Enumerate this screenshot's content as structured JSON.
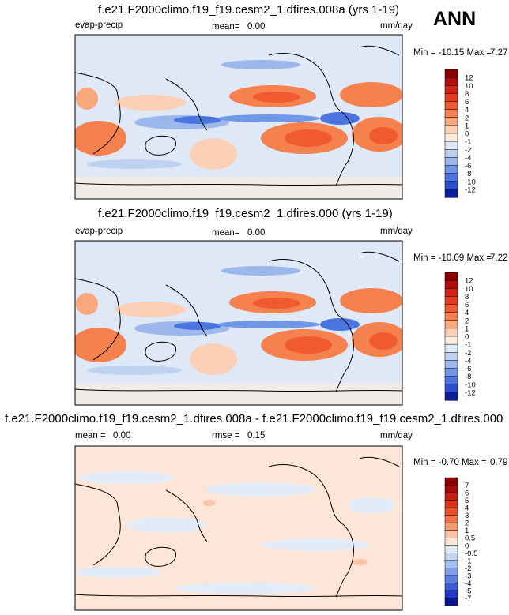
{
  "season": "ANN",
  "chart_data": [
    {
      "type": "heatmap",
      "title": "f.e21.F2000climo.f19_f19.cesm2_1.dfires.008a (yrs 1-19)",
      "variable": "evap-precip",
      "mean_label": "mean=",
      "mean_value": "0.00",
      "units": "mm/day",
      "min_label": "Min = -10.15 Max =",
      "max_value": "7.27",
      "levels": [
        "12",
        "10",
        "8",
        "6",
        "4",
        "2",
        "1",
        "0",
        "-1",
        "-2",
        "-4",
        "-6",
        "-8",
        "-10",
        "-12"
      ],
      "colors": [
        "#8b0000",
        "#b00d0d",
        "#d02216",
        "#e23b1f",
        "#ef5a30",
        "#f5814f",
        "#f9a77c",
        "#fbd0b6",
        "#fdecde",
        "#dfe8f7",
        "#bed1f1",
        "#9bb7ec",
        "#7096e6",
        "#4a74df",
        "#2b4fd0",
        "#0c1e9a"
      ]
    },
    {
      "type": "heatmap",
      "title": "f.e21.F2000climo.f19_f19.cesm2_1.dfires.000 (yrs 1-19)",
      "variable": "evap-precip",
      "mean_label": "mean=",
      "mean_value": "0.00",
      "units": "mm/day",
      "min_label": "Min = -10.09 Max =",
      "max_value": "7.22",
      "levels": [
        "12",
        "10",
        "8",
        "6",
        "4",
        "2",
        "1",
        "0",
        "-1",
        "-2",
        "-4",
        "-6",
        "-8",
        "-10",
        "-12"
      ],
      "colors": [
        "#8b0000",
        "#b00d0d",
        "#d02216",
        "#e23b1f",
        "#ef5a30",
        "#f5814f",
        "#f9a77c",
        "#fbd0b6",
        "#fdecde",
        "#dfe8f7",
        "#bed1f1",
        "#9bb7ec",
        "#7096e6",
        "#4a74df",
        "#2b4fd0",
        "#0c1e9a"
      ]
    },
    {
      "type": "heatmap",
      "title": "f.e21.F2000climo.f19_f19.cesm2_1.dfires.008a - f.e21.F2000climo.f19_f19.cesm2_1.dfires.000",
      "mean_label": "mean =",
      "mean_value": "0.00",
      "rmse_label": "rmse =",
      "rmse_value": "0.15",
      "units": "mm/day",
      "min_label": "Min = -0.70 Max =",
      "max_value": "0.79",
      "levels": [
        "7",
        "6",
        "5",
        "4",
        "3",
        "2",
        "1",
        "0.5",
        "0",
        "-0.5",
        "-1",
        "-2",
        "-3",
        "-4",
        "-5",
        "-7"
      ],
      "colors": [
        "#8b0000",
        "#a80a0a",
        "#c81c14",
        "#dc321c",
        "#ec5028",
        "#f27246",
        "#f69a70",
        "#fac4a6",
        "#fde6d8",
        "#e2ebf8",
        "#c6d7f3",
        "#a4bff0",
        "#7f9fe9",
        "#5b80e2",
        "#3a5cd6",
        "#2138c0",
        "#0a1890"
      ]
    }
  ]
}
